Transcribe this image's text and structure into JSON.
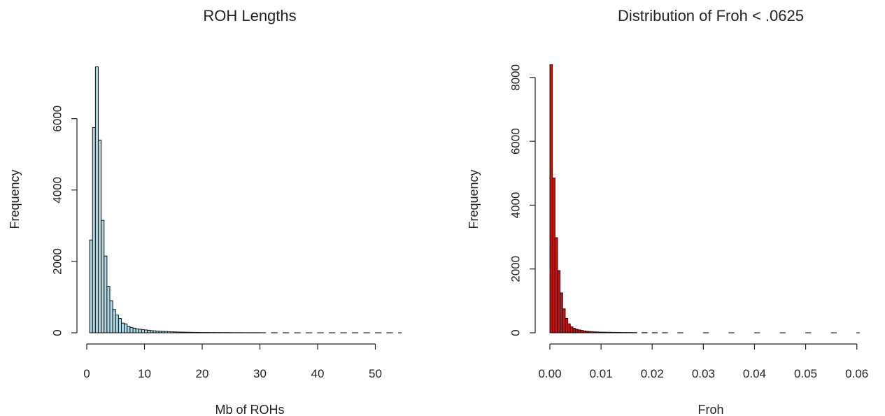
{
  "chart_data": [
    {
      "type": "bar",
      "title": "ROH Lengths",
      "xlabel": "Mb of ROHs",
      "ylabel": "Frequency",
      "fill_color": "#ADD8E6",
      "xlim": [
        0,
        56
      ],
      "ylim": [
        0,
        7600
      ],
      "x_ticks": [
        "0",
        "10",
        "20",
        "30",
        "40",
        "50"
      ],
      "y_ticks": [
        "0",
        "2000",
        "4000",
        "6000"
      ],
      "bin_width": 0.5,
      "bins": [
        {
          "x0": 0.5,
          "value": 2600
        },
        {
          "x0": 1.0,
          "value": 5750
        },
        {
          "x0": 1.5,
          "value": 7450
        },
        {
          "x0": 2.0,
          "value": 5400
        },
        {
          "x0": 2.5,
          "value": 3150
        },
        {
          "x0": 3.0,
          "value": 2150
        },
        {
          "x0": 3.5,
          "value": 1300
        },
        {
          "x0": 4.0,
          "value": 900
        },
        {
          "x0": 4.5,
          "value": 650
        },
        {
          "x0": 5.0,
          "value": 500
        },
        {
          "x0": 5.5,
          "value": 400
        },
        {
          "x0": 6.0,
          "value": 270
        },
        {
          "x0": 6.5,
          "value": 250
        },
        {
          "x0": 7.0,
          "value": 180
        },
        {
          "x0": 7.5,
          "value": 150
        },
        {
          "x0": 8.0,
          "value": 130
        },
        {
          "x0": 8.5,
          "value": 110
        },
        {
          "x0": 9.0,
          "value": 100
        },
        {
          "x0": 9.5,
          "value": 90
        },
        {
          "x0": 10.0,
          "value": 80
        },
        {
          "x0": 10.5,
          "value": 70
        },
        {
          "x0": 11.0,
          "value": 60
        },
        {
          "x0": 11.5,
          "value": 55
        },
        {
          "x0": 12.0,
          "value": 50
        },
        {
          "x0": 12.5,
          "value": 45
        },
        {
          "x0": 13.0,
          "value": 40
        },
        {
          "x0": 13.5,
          "value": 36
        },
        {
          "x0": 14.0,
          "value": 32
        },
        {
          "x0": 14.5,
          "value": 28
        },
        {
          "x0": 15.0,
          "value": 25
        },
        {
          "x0": 15.5,
          "value": 22
        },
        {
          "x0": 16.0,
          "value": 20
        },
        {
          "x0": 16.5,
          "value": 18
        },
        {
          "x0": 17.0,
          "value": 16
        },
        {
          "x0": 17.5,
          "value": 14
        },
        {
          "x0": 18.0,
          "value": 12
        },
        {
          "x0": 18.5,
          "value": 11
        },
        {
          "x0": 19.0,
          "value": 10
        },
        {
          "x0": 19.5,
          "value": 9
        },
        {
          "x0": 20.0,
          "value": 8
        },
        {
          "x0": 21.0,
          "value": 7
        },
        {
          "x0": 22.0,
          "value": 6
        },
        {
          "x0": 23.0,
          "value": 5
        },
        {
          "x0": 24.0,
          "value": 5
        },
        {
          "x0": 25.0,
          "value": 4
        },
        {
          "x0": 26.0,
          "value": 4
        },
        {
          "x0": 27.0,
          "value": 3
        },
        {
          "x0": 28.0,
          "value": 3
        },
        {
          "x0": 29.0,
          "value": 3
        },
        {
          "x0": 30.0,
          "value": 2
        },
        {
          "x0": 32.0,
          "value": 2
        },
        {
          "x0": 34.0,
          "value": 2
        },
        {
          "x0": 36.0,
          "value": 1
        },
        {
          "x0": 38.0,
          "value": 1
        },
        {
          "x0": 40.0,
          "value": 1
        },
        {
          "x0": 42.0,
          "value": 1
        },
        {
          "x0": 44.0,
          "value": 1
        },
        {
          "x0": 46.0,
          "value": 1
        },
        {
          "x0": 48.0,
          "value": 1
        },
        {
          "x0": 50.0,
          "value": 1
        },
        {
          "x0": 52.0,
          "value": 1
        },
        {
          "x0": 54.0,
          "value": 1
        }
      ]
    },
    {
      "type": "bar",
      "title": "Distribution of Froh < .0625",
      "xlabel": "Froh",
      "ylabel": "Frequency",
      "fill_color": "#D21010",
      "xlim": [
        0,
        0.0625
      ],
      "ylim": [
        0,
        8500
      ],
      "x_ticks": [
        "0.00",
        "0.01",
        "0.02",
        "0.03",
        "0.04",
        "0.05",
        "0.06"
      ],
      "y_ticks": [
        "0",
        "2000",
        "4000",
        "6000",
        "8000"
      ],
      "bin_width": 0.0005,
      "bins": [
        {
          "x0": 0.0,
          "value": 8400
        },
        {
          "x0": 0.0005,
          "value": 4850
        },
        {
          "x0": 0.001,
          "value": 2980
        },
        {
          "x0": 0.0015,
          "value": 1950
        },
        {
          "x0": 0.002,
          "value": 1250
        },
        {
          "x0": 0.0025,
          "value": 750
        },
        {
          "x0": 0.003,
          "value": 450
        },
        {
          "x0": 0.0035,
          "value": 280
        },
        {
          "x0": 0.004,
          "value": 190
        },
        {
          "x0": 0.0045,
          "value": 140
        },
        {
          "x0": 0.005,
          "value": 110
        },
        {
          "x0": 0.0055,
          "value": 90
        },
        {
          "x0": 0.006,
          "value": 75
        },
        {
          "x0": 0.0065,
          "value": 60
        },
        {
          "x0": 0.007,
          "value": 50
        },
        {
          "x0": 0.0075,
          "value": 42
        },
        {
          "x0": 0.008,
          "value": 36
        },
        {
          "x0": 0.0085,
          "value": 30
        },
        {
          "x0": 0.009,
          "value": 26
        },
        {
          "x0": 0.0095,
          "value": 22
        },
        {
          "x0": 0.01,
          "value": 20
        },
        {
          "x0": 0.011,
          "value": 16
        },
        {
          "x0": 0.012,
          "value": 13
        },
        {
          "x0": 0.013,
          "value": 11
        },
        {
          "x0": 0.014,
          "value": 9
        },
        {
          "x0": 0.015,
          "value": 8
        },
        {
          "x0": 0.016,
          "value": 7
        },
        {
          "x0": 0.018,
          "value": 5
        },
        {
          "x0": 0.02,
          "value": 4
        },
        {
          "x0": 0.022,
          "value": 3
        },
        {
          "x0": 0.025,
          "value": 2
        },
        {
          "x0": 0.03,
          "value": 2
        },
        {
          "x0": 0.035,
          "value": 1
        },
        {
          "x0": 0.04,
          "value": 1
        },
        {
          "x0": 0.045,
          "value": 1
        },
        {
          "x0": 0.05,
          "value": 1
        },
        {
          "x0": 0.055,
          "value": 1
        },
        {
          "x0": 0.06,
          "value": 1
        }
      ]
    }
  ]
}
